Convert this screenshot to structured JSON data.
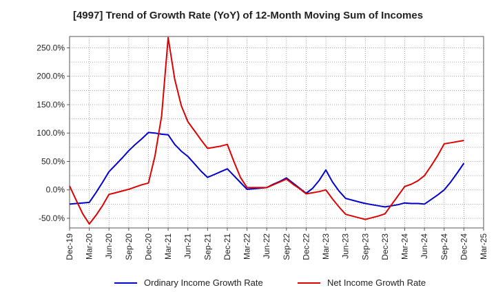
{
  "chart_data": {
    "type": "line",
    "title": "[4997]  Trend of Growth Rate (YoY) of 12-Month Moving Sum of Incomes",
    "xlabel": "",
    "ylabel": "",
    "x_ticks": [
      "Dec-19",
      "Mar-20",
      "Jun-20",
      "Sep-20",
      "Dec-20",
      "Mar-21",
      "Jun-21",
      "Sep-21",
      "Dec-21",
      "Mar-22",
      "Jun-22",
      "Sep-22",
      "Dec-22",
      "Mar-23",
      "Jun-23",
      "Sep-23",
      "Dec-23",
      "Mar-24",
      "Jun-24",
      "Sep-24",
      "Dec-24",
      "Mar-25"
    ],
    "y_ticks": [
      250,
      200,
      150,
      100,
      50,
      0,
      -50
    ],
    "y_tick_labels": [
      "250.0%",
      "200.0%",
      "150.0%",
      "100.0%",
      "50.0%",
      "0.0%",
      "-50.0%"
    ],
    "ylim": [
      -67,
      270
    ],
    "x_range_months": [
      "Dec-19",
      "Mar-25"
    ],
    "grid": true,
    "legend_position": "bottom",
    "series": [
      {
        "name": "Ordinary Income Growth Rate",
        "color": "#0000cc",
        "points": [
          [
            "Dec-19",
            -25
          ],
          [
            "Jan-20",
            -24
          ],
          [
            "Feb-20",
            -23
          ],
          [
            "Mar-20",
            -22
          ],
          [
            "Apr-20",
            -5
          ],
          [
            "May-20",
            13
          ],
          [
            "Jun-20",
            32
          ],
          [
            "Jul-20",
            44
          ],
          [
            "Aug-20",
            56
          ],
          [
            "Sep-20",
            69
          ],
          [
            "Oct-20",
            80
          ],
          [
            "Nov-20",
            90
          ],
          [
            "Dec-20",
            101
          ],
          [
            "Jan-21",
            100
          ],
          [
            "Feb-21",
            98
          ],
          [
            "Mar-21",
            97
          ],
          [
            "Apr-21",
            80
          ],
          [
            "May-21",
            68
          ],
          [
            "Jun-21",
            59
          ],
          [
            "Jul-21",
            46
          ],
          [
            "Aug-21",
            33
          ],
          [
            "Sep-21",
            22
          ],
          [
            "Oct-21",
            27
          ],
          [
            "Nov-21",
            32
          ],
          [
            "Dec-21",
            37
          ],
          [
            "Jan-22",
            25
          ],
          [
            "Feb-22",
            13
          ],
          [
            "Mar-22",
            1
          ],
          [
            "Apr-22",
            2
          ],
          [
            "May-22",
            3
          ],
          [
            "Jun-22",
            4
          ],
          [
            "Jul-22",
            10
          ],
          [
            "Aug-22",
            15
          ],
          [
            "Sep-22",
            21
          ],
          [
            "Oct-22",
            12
          ],
          [
            "Nov-22",
            3
          ],
          [
            "Dec-22",
            -6
          ],
          [
            "Jan-23",
            3
          ],
          [
            "Feb-23",
            17
          ],
          [
            "Mar-23",
            35
          ],
          [
            "Apr-23",
            14
          ],
          [
            "May-23",
            -2
          ],
          [
            "Jun-23",
            -15
          ],
          [
            "Jul-23",
            -18
          ],
          [
            "Aug-23",
            -21
          ],
          [
            "Sep-23",
            -24
          ],
          [
            "Oct-23",
            -26
          ],
          [
            "Nov-23",
            -28
          ],
          [
            "Dec-23",
            -30
          ],
          [
            "Jan-24",
            -28
          ],
          [
            "Feb-24",
            -26
          ],
          [
            "Mar-24",
            -23
          ],
          [
            "Apr-24",
            -24
          ],
          [
            "May-24",
            -24
          ],
          [
            "Jun-24",
            -25
          ],
          [
            "Jul-24",
            -17
          ],
          [
            "Aug-24",
            -9
          ],
          [
            "Sep-24",
            0
          ],
          [
            "Oct-24",
            14
          ],
          [
            "Nov-24",
            30
          ],
          [
            "Dec-24",
            47
          ]
        ]
      },
      {
        "name": "Net Income Growth Rate",
        "color": "#dd0000",
        "points": [
          [
            "Dec-19",
            7
          ],
          [
            "Jan-20",
            -18
          ],
          [
            "Feb-20",
            -42
          ],
          [
            "Mar-20",
            -60
          ],
          [
            "Apr-20",
            -45
          ],
          [
            "May-20",
            -28
          ],
          [
            "Jun-20",
            -8
          ],
          [
            "Jul-20",
            -5
          ],
          [
            "Aug-20",
            -2
          ],
          [
            "Sep-20",
            1
          ],
          [
            "Oct-20",
            5
          ],
          [
            "Nov-20",
            9
          ],
          [
            "Dec-20",
            12
          ],
          [
            "Jan-21",
            60
          ],
          [
            "Feb-21",
            130
          ],
          [
            "Mar-21",
            268
          ],
          [
            "Apr-21",
            195
          ],
          [
            "May-21",
            148
          ],
          [
            "Jun-21",
            120
          ],
          [
            "Jul-21",
            104
          ],
          [
            "Aug-21",
            88
          ],
          [
            "Sep-21",
            73
          ],
          [
            "Oct-21",
            75
          ],
          [
            "Nov-21",
            77
          ],
          [
            "Dec-21",
            80
          ],
          [
            "Jan-22",
            50
          ],
          [
            "Feb-22",
            22
          ],
          [
            "Mar-22",
            4
          ],
          [
            "Apr-22",
            4
          ],
          [
            "May-22",
            4
          ],
          [
            "Jun-22",
            4
          ],
          [
            "Jul-22",
            9
          ],
          [
            "Aug-22",
            14
          ],
          [
            "Sep-22",
            19
          ],
          [
            "Oct-22",
            10
          ],
          [
            "Nov-22",
            2
          ],
          [
            "Dec-22",
            -7
          ],
          [
            "Jan-23",
            -5
          ],
          [
            "Feb-23",
            -3
          ],
          [
            "Mar-23",
            0
          ],
          [
            "Apr-23",
            -16
          ],
          [
            "May-23",
            -30
          ],
          [
            "Jun-23",
            -43
          ],
          [
            "Jul-23",
            -46
          ],
          [
            "Aug-23",
            -49
          ],
          [
            "Sep-23",
            -52
          ],
          [
            "Oct-23",
            -49
          ],
          [
            "Nov-23",
            -46
          ],
          [
            "Dec-23",
            -42
          ],
          [
            "Jan-24",
            -26
          ],
          [
            "Feb-24",
            -10
          ],
          [
            "Mar-24",
            6
          ],
          [
            "Apr-24",
            10
          ],
          [
            "May-24",
            16
          ],
          [
            "Jun-24",
            25
          ],
          [
            "Jul-24",
            42
          ],
          [
            "Aug-24",
            60
          ],
          [
            "Sep-24",
            81
          ],
          [
            "Oct-24",
            83
          ],
          [
            "Nov-24",
            85
          ],
          [
            "Dec-24",
            87
          ]
        ]
      }
    ]
  }
}
